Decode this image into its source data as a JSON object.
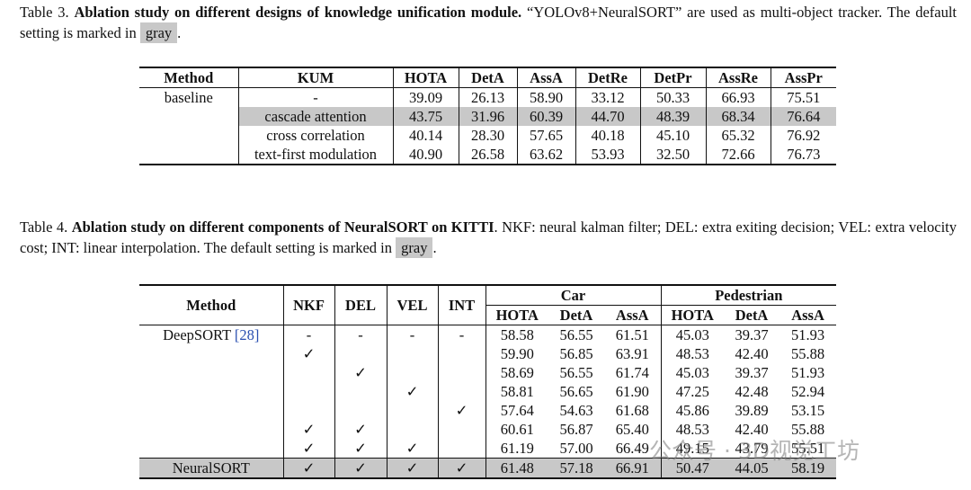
{
  "table3": {
    "caption": {
      "label": "Table 3.",
      "bold": "Ablation study on different designs of knowledge unification module.",
      "text": "“YOLOv8+NeuralSORT” are used as multi-object tracker. The default setting is marked in",
      "gray": "gray",
      "end": "."
    },
    "columns": [
      "Method",
      "KUM",
      "HOTA",
      "DetA",
      "AssA",
      "DetRe",
      "DetPr",
      "AssRe",
      "AssPr"
    ],
    "rows": [
      {
        "cells": [
          "baseline",
          "-",
          "39.09",
          "26.13",
          "58.90",
          "33.12",
          "50.33",
          "66.93",
          "75.51"
        ]
      },
      {
        "cells": [
          null,
          "cascade attention",
          "43.75",
          "31.96",
          "60.39",
          "44.70",
          "48.39",
          "68.34",
          "76.64"
        ],
        "shaded": true
      },
      {
        "cells": [
          null,
          "cross correlation",
          "40.14",
          "28.30",
          "57.65",
          "40.18",
          "45.10",
          "65.32",
          "76.92"
        ]
      },
      {
        "cells": [
          null,
          "text-first modulation",
          "40.90",
          "26.58",
          "63.62",
          "53.93",
          "32.50",
          "72.66",
          "76.73"
        ]
      }
    ]
  },
  "table4": {
    "caption": {
      "label": "Table 4.",
      "bold": "Ablation study on different components of NeuralSORT on KITTI",
      "text": ". NKF: neural kalman filter; DEL: extra exiting decision; VEL: extra velocity cost; INT: linear interpolation. The default setting is marked in",
      "gray": "gray",
      "end": "."
    },
    "columns": [
      "Method",
      "NKF",
      "DEL",
      "VEL",
      "INT"
    ],
    "groups": [
      {
        "name": "Car",
        "columns": [
          "HOTA",
          "DetA",
          "AssA"
        ]
      },
      {
        "name": "Pedestrian",
        "columns": [
          "HOTA",
          "DetA",
          "AssA"
        ]
      }
    ],
    "rows": [
      {
        "cells": [
          "DeepSORT",
          "-",
          "-",
          "-",
          "-",
          "58.58",
          "56.55",
          "61.51",
          "45.03",
          "39.37",
          "51.93"
        ],
        "ref": "[28]"
      },
      {
        "cells": [
          null,
          "✓",
          null,
          null,
          null,
          "59.90",
          "56.85",
          "63.91",
          "48.53",
          "42.40",
          "55.88"
        ]
      },
      {
        "cells": [
          null,
          null,
          "✓",
          null,
          null,
          "58.69",
          "56.55",
          "61.74",
          "45.03",
          "39.37",
          "51.93"
        ]
      },
      {
        "cells": [
          null,
          null,
          null,
          "✓",
          null,
          "58.81",
          "56.65",
          "61.90",
          "47.25",
          "42.48",
          "52.94"
        ]
      },
      {
        "cells": [
          null,
          null,
          null,
          null,
          "✓",
          "57.64",
          "54.63",
          "61.68",
          "45.86",
          "39.89",
          "53.15"
        ]
      },
      {
        "cells": [
          null,
          "✓",
          "✓",
          null,
          null,
          "60.61",
          "56.87",
          "65.40",
          "48.53",
          "42.40",
          "55.88"
        ]
      },
      {
        "cells": [
          null,
          "✓",
          "✓",
          "✓",
          null,
          "61.19",
          "57.00",
          "66.49",
          "49.15",
          "43.79",
          "55.51"
        ]
      },
      {
        "cells": [
          "NeuralSORT",
          "✓",
          "✓",
          "✓",
          "✓",
          "61.48",
          "57.18",
          "66.91",
          "50.47",
          "44.05",
          "58.19"
        ],
        "shaded": true
      }
    ]
  },
  "watermark": "公众号 · 3D视觉工坊"
}
